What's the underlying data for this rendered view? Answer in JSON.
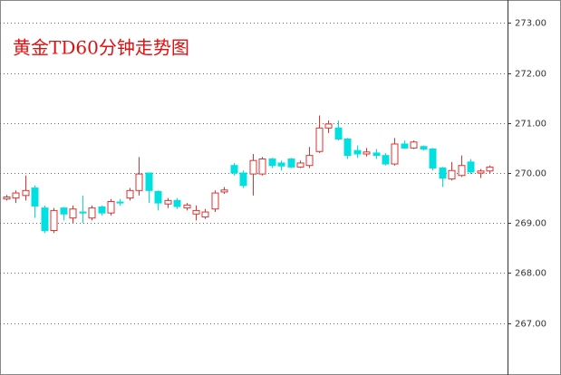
{
  "chart_data": {
    "type": "candlestick",
    "title": "黄金TD60分钟走势图",
    "title_color": "#e01010",
    "up_color": "#e03030",
    "down_color": "#00e0e0",
    "grid": true,
    "ylim": [
      265.96,
      273.46
    ],
    "yticks": [
      {
        "value": 267,
        "label": "267.00"
      },
      {
        "value": 268,
        "label": "268.00"
      },
      {
        "value": 269,
        "label": "269.00"
      },
      {
        "value": 270,
        "label": "270.00"
      },
      {
        "value": 271,
        "label": "271.00"
      },
      {
        "value": 272,
        "label": "272.00"
      },
      {
        "value": 273,
        "label": "273.00"
      }
    ],
    "open": [
      269.48,
      269.5,
      269.55,
      269.7,
      269.3,
      268.85,
      269.3,
      269.1,
      269.22,
      269.1,
      269.32,
      269.2,
      269.42,
      269.5,
      269.65,
      270.0,
      269.63,
      269.38,
      269.45,
      269.3,
      269.18,
      269.12,
      269.28,
      269.62,
      270.15,
      270.0,
      269.98,
      269.98,
      270.28,
      270.2,
      270.28,
      270.12,
      270.15,
      270.43,
      270.9,
      270.9,
      270.68,
      270.45,
      270.38,
      270.4,
      270.35,
      270.18,
      270.58,
      270.5,
      270.53,
      270.48,
      270.1,
      269.88,
      269.95,
      270.22,
      270.0,
      270.04
    ],
    "high": [
      269.56,
      269.65,
      269.95,
      269.75,
      269.35,
      269.3,
      269.32,
      269.35,
      269.55,
      269.35,
      269.35,
      269.48,
      269.48,
      269.7,
      270.32,
      270.0,
      269.65,
      269.5,
      269.5,
      269.4,
      269.35,
      269.28,
      269.65,
      269.72,
      270.2,
      270.05,
      270.38,
      270.32,
      270.3,
      270.25,
      270.3,
      270.25,
      270.52,
      271.15,
      271.05,
      271.05,
      270.7,
      270.55,
      270.5,
      270.48,
      270.4,
      270.7,
      270.65,
      270.65,
      270.55,
      270.5,
      270.12,
      270.22,
      270.35,
      270.28,
      270.08,
      270.15
    ],
    "low": [
      269.45,
      269.4,
      269.45,
      269.1,
      268.8,
      268.8,
      269.05,
      269.0,
      269.0,
      269.05,
      269.15,
      269.15,
      269.35,
      269.45,
      269.55,
      269.4,
      269.25,
      269.3,
      269.28,
      269.25,
      269.05,
      269.08,
      269.22,
      269.58,
      269.95,
      269.7,
      269.55,
      269.95,
      270.1,
      270.05,
      270.1,
      270.1,
      270.1,
      270.4,
      270.8,
      270.65,
      270.28,
      270.3,
      270.33,
      270.28,
      270.15,
      270.15,
      270.48,
      270.48,
      270.45,
      270.05,
      269.72,
      269.85,
      269.92,
      269.98,
      269.9,
      270.0
    ],
    "close": [
      269.52,
      269.6,
      269.65,
      269.34,
      268.85,
      269.25,
      269.18,
      269.28,
      269.2,
      269.3,
      269.2,
      269.43,
      269.4,
      269.65,
      269.98,
      269.65,
      269.4,
      269.45,
      269.33,
      269.36,
      269.25,
      269.22,
      269.6,
      269.66,
      270.0,
      269.75,
      270.25,
      270.28,
      270.15,
      270.14,
      270.12,
      270.2,
      270.35,
      270.9,
      270.98,
      270.68,
      270.35,
      270.38,
      270.42,
      270.35,
      270.18,
      270.58,
      270.5,
      270.62,
      270.48,
      270.1,
      269.9,
      270.05,
      270.15,
      270.02,
      270.04,
      270.12
    ]
  }
}
